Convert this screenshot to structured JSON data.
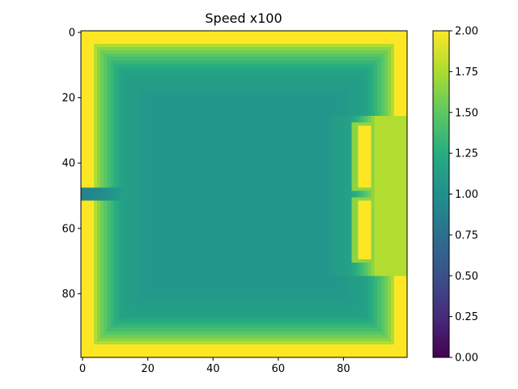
{
  "chart_data": {
    "type": "heatmap",
    "title": "Speed x100",
    "grid": false,
    "colormap": "viridis",
    "image_shape": [
      100,
      100
    ],
    "x_range": [
      0,
      99
    ],
    "y_range": [
      99,
      0
    ],
    "x_ticks": [
      0,
      20,
      40,
      60,
      80
    ],
    "y_ticks": [
      0,
      20,
      40,
      60,
      80
    ],
    "value_range": [
      0,
      2
    ],
    "colorbar_ticks": [
      "0.00",
      "0.25",
      "0.50",
      "0.75",
      "1.00",
      "1.25",
      "1.50",
      "1.75",
      "2.00"
    ],
    "field_description_values": {
      "boundary_value": 2.0,
      "interior_min": 1.05,
      "interior_outer_ring": 1.15,
      "inlet_jet": {
        "row_from": 48,
        "row_to": 51,
        "col_from": 0,
        "col_to": 12,
        "value": 0.9
      },
      "bright_bar_upper": {
        "row_from": 29,
        "row_to": 47,
        "col_from": 85,
        "col_to": 88,
        "value": 2.0
      },
      "bright_bar_lower": {
        "row_from": 52,
        "row_to": 69,
        "col_from": 85,
        "col_to": 88,
        "value": 2.0
      }
    }
  }
}
